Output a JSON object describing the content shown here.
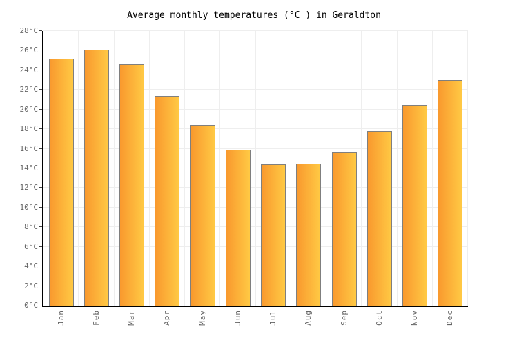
{
  "chart_data": {
    "type": "bar",
    "title": "Average monthly temperatures (°C ) in Geraldton",
    "categories": [
      "Jan",
      "Feb",
      "Mar",
      "Apr",
      "May",
      "Jun",
      "Jul",
      "Aug",
      "Sep",
      "Oct",
      "Nov",
      "Dec"
    ],
    "values": [
      25.2,
      26.1,
      24.6,
      21.4,
      18.4,
      15.9,
      14.4,
      14.5,
      15.6,
      17.8,
      20.5,
      23.0
    ],
    "xlabel": "",
    "ylabel": "",
    "ylim": [
      0,
      28
    ],
    "ytick_step": 2,
    "ytick_suffix": "°C",
    "yticks": [
      "0°C",
      "2°C",
      "4°C",
      "6°C",
      "8°C",
      "10°C",
      "12°C",
      "14°C",
      "16°C",
      "18°C",
      "20°C",
      "22°C",
      "24°C",
      "26°C",
      "28°C"
    ],
    "grid": true,
    "legend": false,
    "colors": {
      "bar_gradient_left": "#F9992E",
      "bar_gradient_right": "#FFC944",
      "bar_border": "#7F7F7F",
      "grid": "#EEEEEE",
      "axis": "#000000",
      "tick_label": "#666666",
      "title": "#000000"
    }
  }
}
